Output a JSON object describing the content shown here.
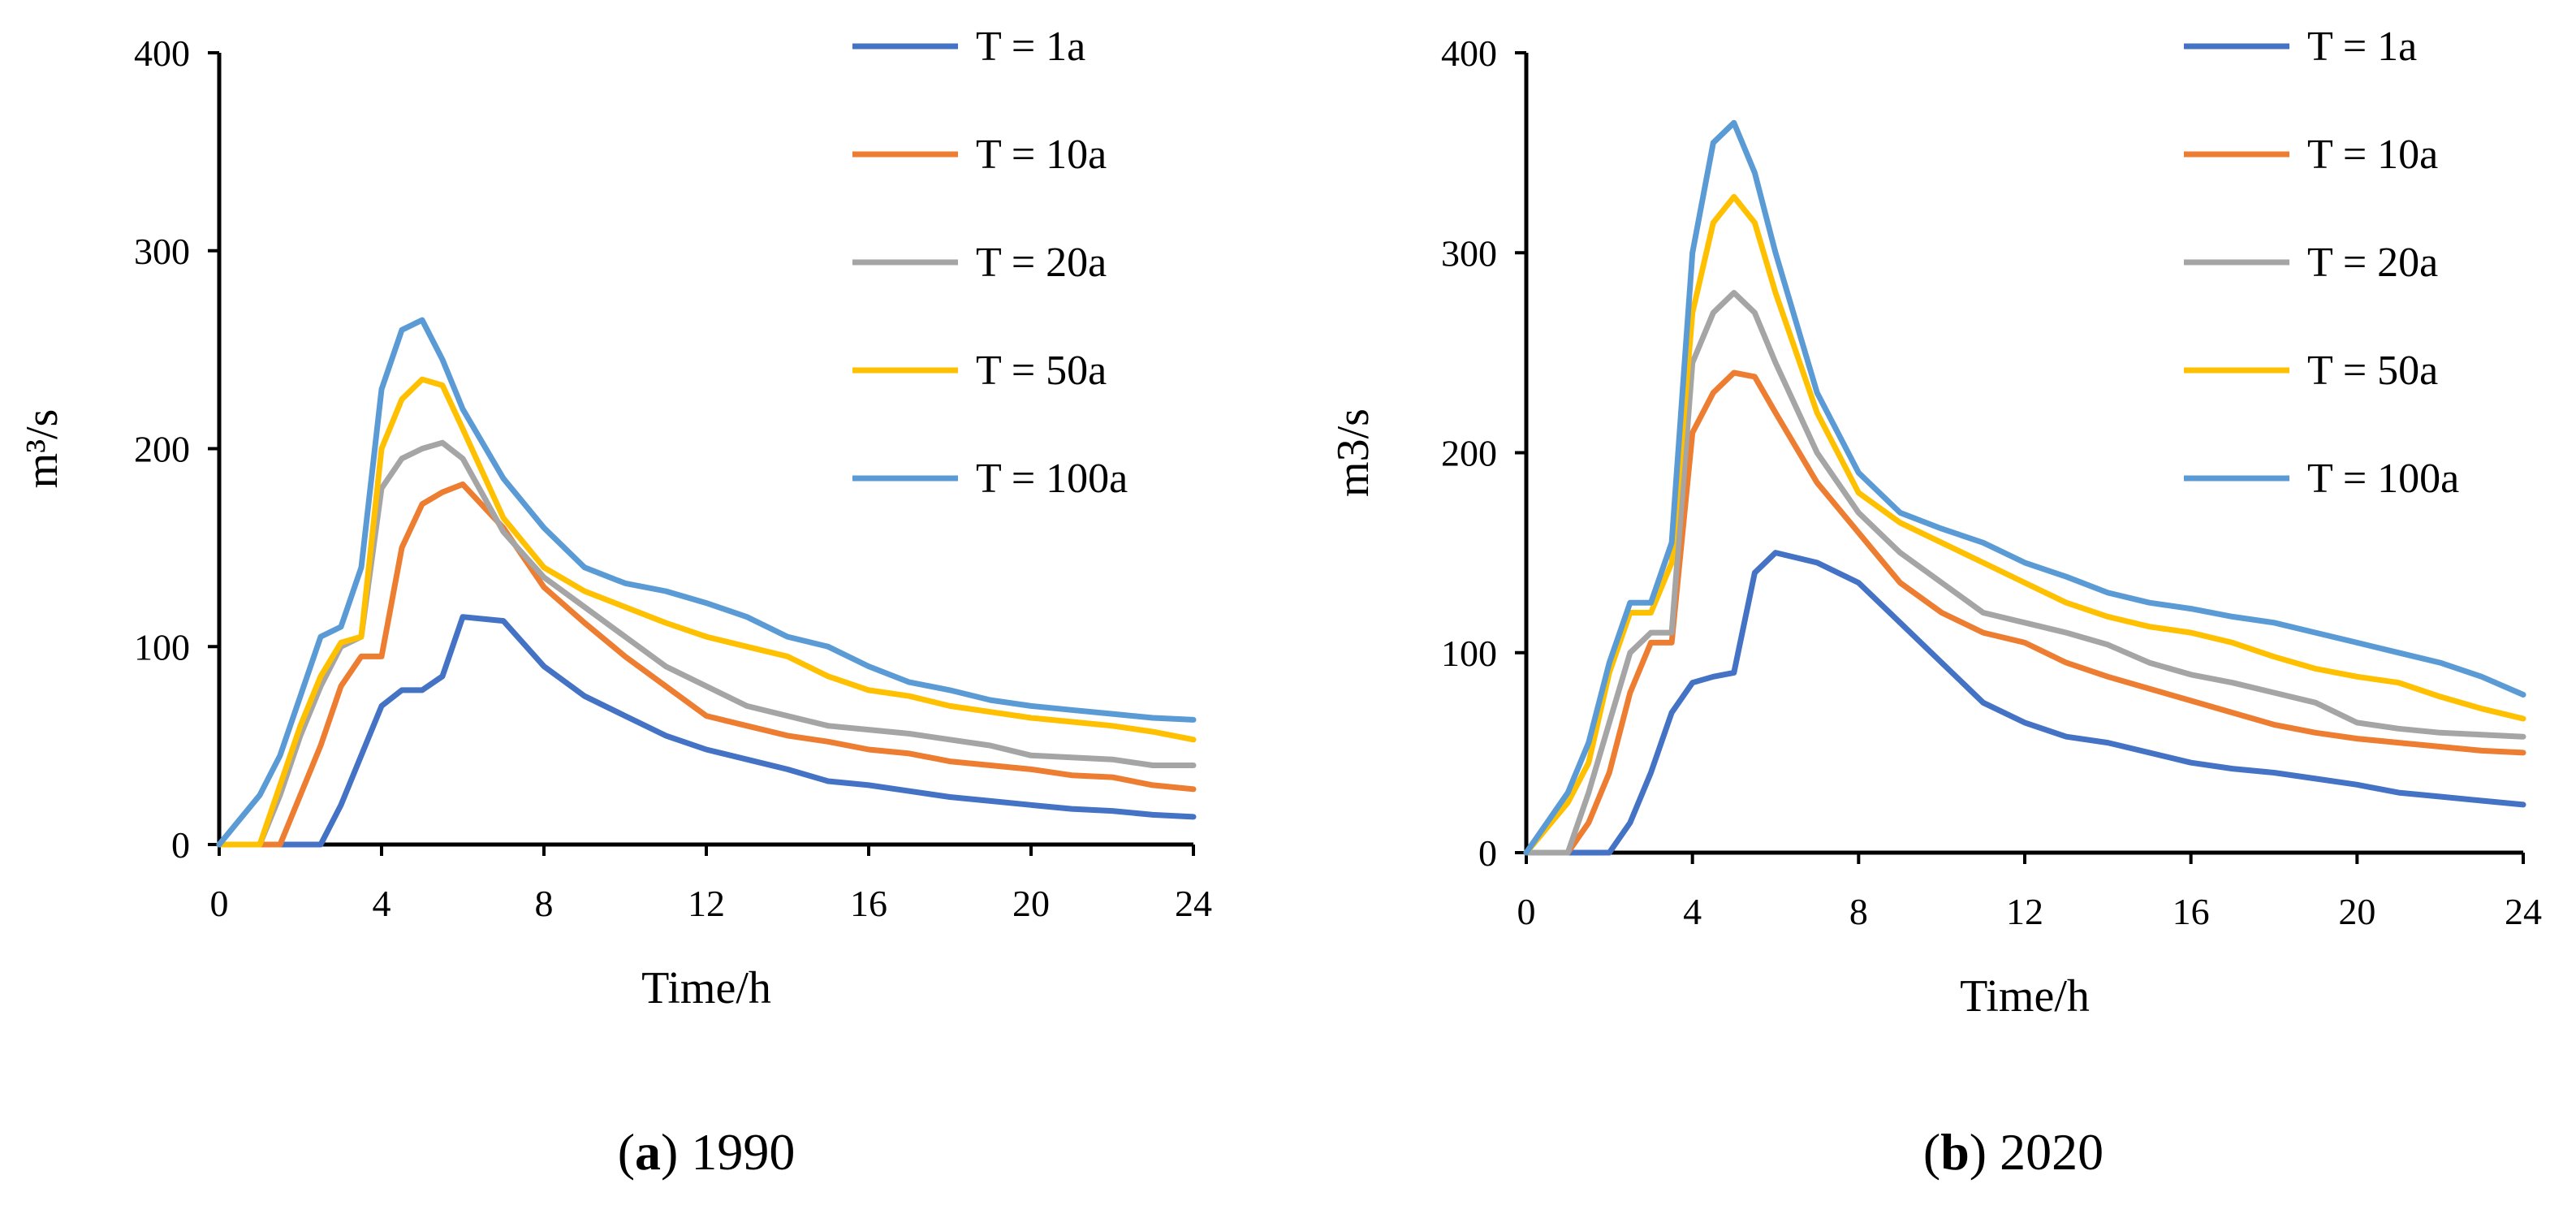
{
  "chart_data": [
    {
      "type": "line",
      "caption_letter": "a",
      "caption_text": " 1990",
      "ylabel": "m³/s",
      "xlabel": "Time/h",
      "xlim": [
        0,
        24
      ],
      "ylim": [
        0,
        400
      ],
      "xticks": [
        0,
        4,
        8,
        12,
        16,
        20,
        24
      ],
      "yticks": [
        0,
        100,
        200,
        300,
        400
      ],
      "x": [
        0,
        1,
        1.5,
        2,
        2.5,
        3,
        3.5,
        4,
        4.5,
        5,
        5.5,
        6,
        7,
        8,
        9,
        10,
        11,
        12,
        13,
        14,
        15,
        16,
        17,
        18,
        19,
        20,
        21,
        22,
        23,
        24
      ],
      "legend_position": "top-right",
      "series": [
        {
          "name": "T = 1a",
          "color": "#4472C4",
          "values": [
            0,
            0,
            0,
            0,
            0,
            20,
            45,
            70,
            78,
            78,
            85,
            115,
            113,
            90,
            75,
            65,
            55,
            48,
            43,
            38,
            32,
            30,
            27,
            24,
            22,
            20,
            18,
            17,
            15,
            14
          ]
        },
        {
          "name": "T = 10a",
          "color": "#ED7D31",
          "values": [
            0,
            0,
            0,
            25,
            50,
            80,
            95,
            95,
            150,
            172,
            178,
            182,
            160,
            130,
            112,
            95,
            80,
            65,
            60,
            55,
            52,
            48,
            46,
            42,
            40,
            38,
            35,
            34,
            30,
            28
          ]
        },
        {
          "name": "T = 20a",
          "color": "#A5A5A5",
          "values": [
            0,
            0,
            25,
            55,
            80,
            100,
            105,
            180,
            195,
            200,
            203,
            195,
            158,
            135,
            120,
            105,
            90,
            80,
            70,
            65,
            60,
            58,
            56,
            53,
            50,
            45,
            44,
            43,
            40,
            40
          ]
        },
        {
          "name": "T = 50a",
          "color": "#FFC000",
          "values": [
            0,
            0,
            30,
            60,
            85,
            102,
            105,
            200,
            225,
            235,
            232,
            210,
            165,
            140,
            128,
            120,
            112,
            105,
            100,
            95,
            85,
            78,
            75,
            70,
            67,
            64,
            62,
            60,
            57,
            53
          ]
        },
        {
          "name": "T = 100a",
          "color": "#5B9BD5",
          "values": [
            0,
            25,
            45,
            75,
            105,
            110,
            140,
            230,
            260,
            265,
            245,
            220,
            185,
            160,
            140,
            132,
            128,
            122,
            115,
            105,
            100,
            90,
            82,
            78,
            73,
            70,
            68,
            66,
            64,
            63
          ]
        }
      ]
    },
    {
      "type": "line",
      "caption_letter": "b",
      "caption_text": " 2020",
      "ylabel": "m3/s",
      "xlabel": "Time/h",
      "xlim": [
        0,
        24
      ],
      "ylim": [
        0,
        400
      ],
      "xticks": [
        0,
        4,
        8,
        12,
        16,
        20,
        24
      ],
      "yticks": [
        0,
        100,
        200,
        300,
        400
      ],
      "x": [
        0,
        1,
        1.5,
        2,
        2.5,
        3,
        3.5,
        4,
        4.5,
        5,
        5.5,
        6,
        7,
        8,
        9,
        10,
        11,
        12,
        13,
        14,
        15,
        16,
        17,
        18,
        19,
        20,
        21,
        22,
        23,
        24
      ],
      "legend_position": "top-right",
      "series": [
        {
          "name": "T = 1a",
          "color": "#4472C4",
          "values": [
            0,
            0,
            0,
            0,
            15,
            40,
            70,
            85,
            88,
            90,
            140,
            150,
            145,
            135,
            115,
            95,
            75,
            65,
            58,
            55,
            50,
            45,
            42,
            40,
            37,
            34,
            30,
            28,
            26,
            24
          ]
        },
        {
          "name": "T = 10a",
          "color": "#ED7D31",
          "values": [
            0,
            0,
            15,
            40,
            80,
            105,
            105,
            210,
            230,
            240,
            238,
            220,
            185,
            160,
            135,
            120,
            110,
            105,
            95,
            88,
            82,
            76,
            70,
            64,
            60,
            57,
            55,
            53,
            51,
            50
          ]
        },
        {
          "name": "T = 20a",
          "color": "#A5A5A5",
          "values": [
            0,
            0,
            30,
            65,
            100,
            110,
            110,
            245,
            270,
            280,
            270,
            245,
            200,
            170,
            150,
            135,
            120,
            115,
            110,
            104,
            95,
            89,
            85,
            80,
            75,
            65,
            62,
            60,
            59,
            58
          ]
        },
        {
          "name": "T = 50a",
          "color": "#FFC000",
          "values": [
            0,
            25,
            45,
            90,
            120,
            120,
            145,
            270,
            315,
            328,
            315,
            280,
            220,
            180,
            165,
            155,
            145,
            135,
            125,
            118,
            113,
            110,
            105,
            98,
            92,
            88,
            85,
            78,
            72,
            67
          ]
        },
        {
          "name": "T = 100a",
          "color": "#5B9BD5",
          "values": [
            0,
            30,
            55,
            95,
            125,
            125,
            155,
            300,
            355,
            365,
            340,
            300,
            230,
            190,
            170,
            162,
            155,
            145,
            138,
            130,
            125,
            122,
            118,
            115,
            110,
            105,
            100,
            95,
            88,
            79
          ]
        }
      ]
    }
  ]
}
